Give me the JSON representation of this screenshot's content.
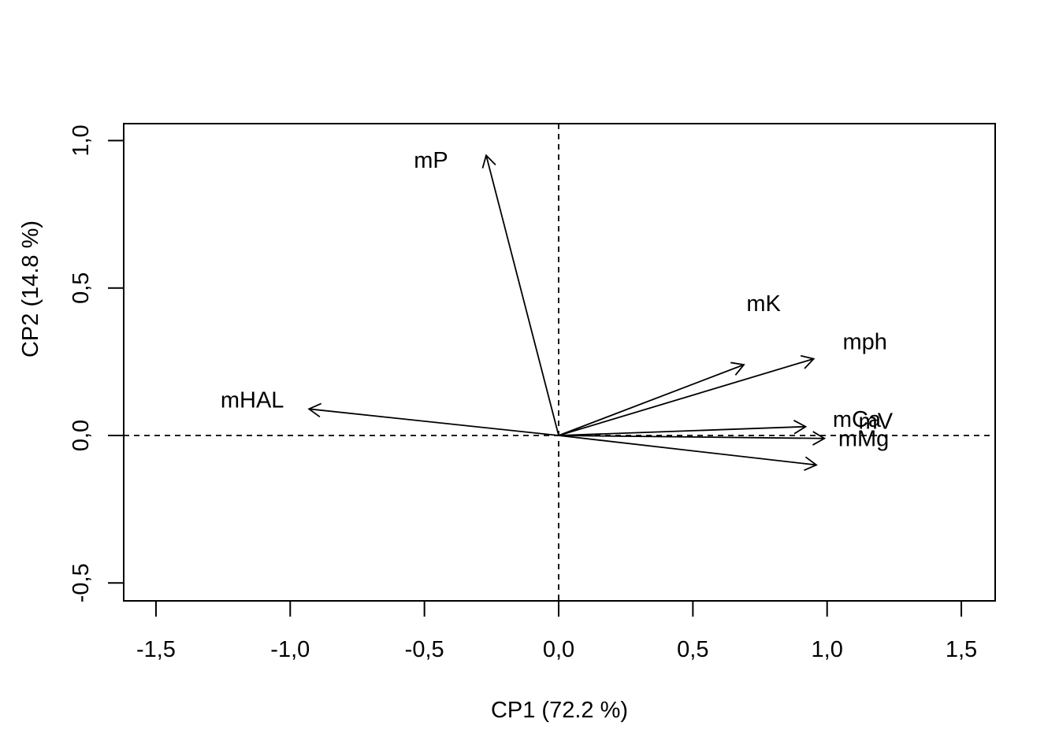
{
  "chart_data": {
    "type": "biplot",
    "xlabel": "CP1 (72.2 %)",
    "ylabel": "CP2 (14.8 %)",
    "xlim": [
      -1.5,
      1.5
    ],
    "ylim": [
      -0.5,
      1.0
    ],
    "xticks": [
      {
        "value": -1.5,
        "label": "-1,5"
      },
      {
        "value": -1.0,
        "label": "-1,0"
      },
      {
        "value": -0.5,
        "label": "-0,5"
      },
      {
        "value": 0.0,
        "label": "0,0"
      },
      {
        "value": 0.5,
        "label": "0,5"
      },
      {
        "value": 1.0,
        "label": "1,0"
      },
      {
        "value": 1.5,
        "label": "1,5"
      }
    ],
    "yticks": [
      {
        "value": -0.5,
        "label": "-0,5"
      },
      {
        "value": 0.0,
        "label": "0,0"
      },
      {
        "value": 0.5,
        "label": "0,5"
      },
      {
        "value": 1.0,
        "label": "1,0"
      }
    ],
    "reference_lines": {
      "x": 0.0,
      "y": 0.0,
      "style": "dashed"
    },
    "vectors": [
      {
        "name": "mP",
        "x": -0.27,
        "y": 0.95
      },
      {
        "name": "mHAL",
        "x": -0.93,
        "y": 0.09
      },
      {
        "name": "mK",
        "x": 0.69,
        "y": 0.24
      },
      {
        "name": "mph",
        "x": 0.95,
        "y": 0.26
      },
      {
        "name": "mCa",
        "x": 0.92,
        "y": 0.03
      },
      {
        "name": "mV",
        "x": 0.99,
        "y": -0.01
      },
      {
        "name": "mMg",
        "x": 0.96,
        "y": -0.1
      }
    ],
    "grid": false,
    "legend": "none"
  }
}
